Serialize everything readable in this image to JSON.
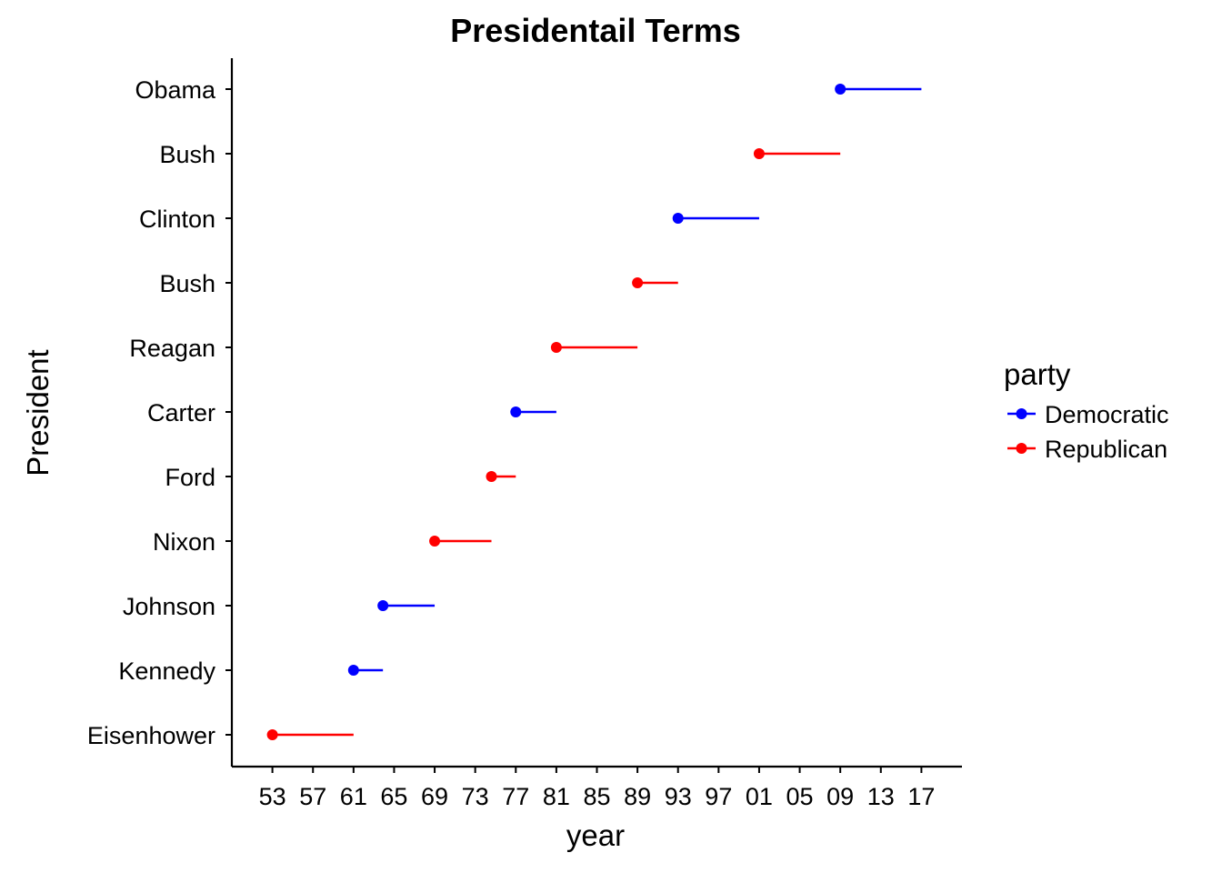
{
  "chart_data": {
    "type": "line",
    "title": "Presidentail Terms",
    "xlabel": "year",
    "ylabel": "President",
    "xlim": [
      1949,
      2021
    ],
    "x_ticks": [
      1953,
      1957,
      1961,
      1965,
      1969,
      1973,
      1977,
      1981,
      1985,
      1989,
      1993,
      1997,
      2001,
      2005,
      2009,
      2013,
      2017
    ],
    "x_tick_labels": [
      "53",
      "57",
      "61",
      "65",
      "69",
      "73",
      "77",
      "81",
      "85",
      "89",
      "93",
      "97",
      "01",
      "05",
      "09",
      "13",
      "17"
    ],
    "categories": [
      "Eisenhower",
      "Kennedy",
      "Johnson",
      "Nixon",
      "Ford",
      "Carter",
      "Reagan",
      "Bush",
      "Clinton",
      "Bush",
      "Obama"
    ],
    "terms": [
      {
        "president": "Eisenhower",
        "start": 1953,
        "end": 1961,
        "party": "Republican"
      },
      {
        "president": "Kennedy",
        "start": 1961,
        "end": 1963.9,
        "party": "Democratic"
      },
      {
        "president": "Johnson",
        "start": 1963.9,
        "end": 1969,
        "party": "Democratic"
      },
      {
        "president": "Nixon",
        "start": 1969,
        "end": 1974.6,
        "party": "Republican"
      },
      {
        "president": "Ford",
        "start": 1974.6,
        "end": 1977,
        "party": "Republican"
      },
      {
        "president": "Carter",
        "start": 1977,
        "end": 1981,
        "party": "Democratic"
      },
      {
        "president": "Reagan",
        "start": 1981,
        "end": 1989,
        "party": "Republican"
      },
      {
        "president": "Bush",
        "start": 1989,
        "end": 1993,
        "party": "Republican"
      },
      {
        "president": "Clinton",
        "start": 1993,
        "end": 2001,
        "party": "Democratic"
      },
      {
        "president": "Bush",
        "start": 2001,
        "end": 2009,
        "party": "Republican"
      },
      {
        "president": "Obama",
        "start": 2009,
        "end": 2017,
        "party": "Democratic"
      }
    ],
    "legend": {
      "title": "party",
      "position": "right",
      "entries": [
        {
          "name": "Democratic",
          "color": "#0000ff"
        },
        {
          "name": "Republican",
          "color": "#ff0000"
        }
      ]
    },
    "grid": false
  }
}
